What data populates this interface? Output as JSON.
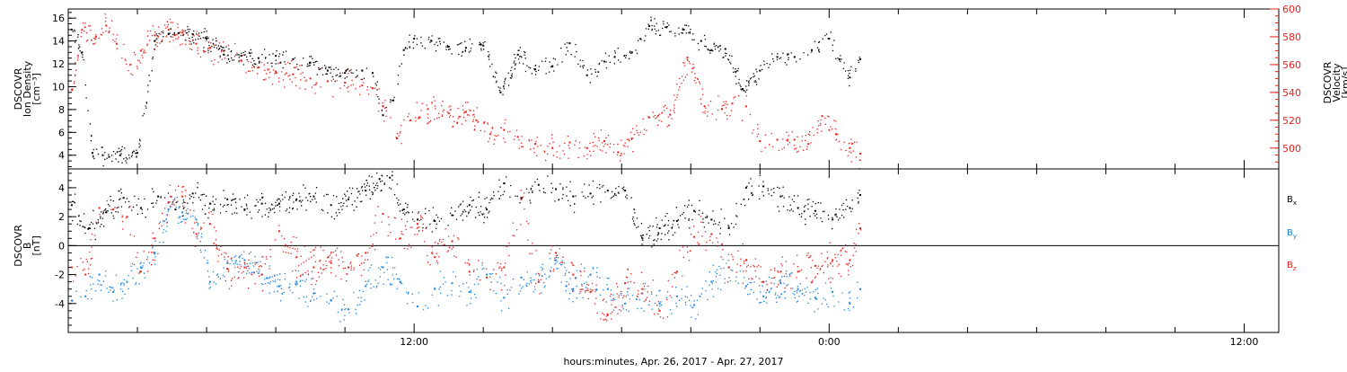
{
  "colors": {
    "black": "#000000",
    "red": "#e8201a",
    "blue": "#1a82e0",
    "frame": "#000000"
  },
  "xaxis": {
    "label": "hours:minutes, Apr. 26, 2017 - Apr. 27, 2017",
    "range_hours": [
      0,
      35
    ],
    "tick_labels": [
      {
        "hour": 10,
        "text": "12:00"
      },
      {
        "hour": 22,
        "text": "0:00"
      },
      {
        "hour": 34,
        "text": "12:00"
      }
    ]
  },
  "chart_data": [
    {
      "type": "scatter",
      "panel": "density-velocity",
      "ylabel": [
        "DSCOVR",
        "Ion Density",
        "[cm⁻³]"
      ],
      "ylim": [
        2.8,
        16.8
      ],
      "y_ticks": [
        4,
        6,
        8,
        10,
        12,
        14,
        16
      ],
      "y2label": [
        "DSCOVR",
        "Velocity",
        "[km/s]"
      ],
      "y2lim": [
        485,
        600
      ],
      "y2_ticks": [
        500,
        520,
        540,
        560,
        580,
        600
      ],
      "series": [
        {
          "name": "",
          "axis": "left",
          "color": "black",
          "x": [
            0.1,
            0.4,
            0.7,
            1.0,
            1.5,
            2.0,
            2.5,
            2.9,
            3.2,
            3.6,
            4.0,
            4.5,
            5.0,
            5.5,
            6.0,
            6.5,
            7.0,
            7.5,
            8.0,
            8.5,
            8.8,
            9.1,
            9.4,
            9.7,
            10.0,
            10.5,
            11.0,
            11.5,
            12.0,
            12.5,
            13.0,
            13.5,
            14.0,
            14.5,
            15.0,
            15.5,
            15.8,
            16.3,
            16.8,
            17.3,
            17.8,
            18.3,
            18.6,
            19.0,
            19.5,
            20.0,
            20.5,
            21.0,
            21.5,
            22.0,
            22.3,
            22.6,
            22.9
          ],
          "y": [
            15.0,
            13.0,
            4.2,
            4.0,
            4.0,
            4.2,
            14.0,
            14.6,
            14.7,
            14.6,
            14.2,
            12.8,
            12.7,
            12.5,
            12.7,
            12.4,
            12.1,
            11.4,
            11.2,
            11.4,
            11.2,
            7.5,
            8.8,
            13.2,
            14.2,
            14.0,
            13.5,
            13.4,
            13.6,
            9.5,
            12.8,
            11.5,
            11.8,
            13.8,
            11.0,
            12.2,
            12.6,
            13.0,
            15.3,
            15.2,
            15.0,
            14.0,
            13.2,
            13.3,
            9.8,
            11.4,
            12.6,
            12.6,
            13.2,
            14.2,
            12.4,
            10.8,
            12.4
          ]
        },
        {
          "name": "",
          "axis": "right",
          "color": "red",
          "x": [
            0.1,
            0.4,
            0.8,
            1.1,
            1.4,
            1.8,
            2.1,
            2.5,
            2.9,
            3.3,
            3.7,
            4.1,
            4.5,
            5.0,
            5.5,
            6.0,
            6.5,
            7.0,
            7.5,
            8.0,
            8.5,
            8.8,
            9.1,
            9.5,
            9.9,
            10.4,
            11.0,
            11.5,
            11.8,
            12.2,
            12.6,
            13.0,
            13.5,
            14.0,
            14.5,
            15.0,
            15.5,
            15.9,
            16.3,
            16.8,
            17.4,
            17.9,
            18.4,
            18.9,
            19.2,
            19.6,
            20.0,
            20.5,
            21.0,
            21.4,
            21.8,
            22.2,
            22.6,
            22.9
          ],
          "y": [
            542,
            585,
            580,
            588,
            575,
            560,
            570,
            581,
            585,
            583,
            575,
            572,
            570,
            563,
            558,
            555,
            553,
            550,
            548,
            547,
            545,
            543,
            530,
            507,
            520,
            528,
            525,
            526,
            520,
            510,
            513,
            508,
            503,
            500,
            504,
            500,
            505,
            497,
            507,
            522,
            524,
            565,
            530,
            528,
            532,
            530,
            505,
            506,
            506,
            503,
            523,
            510,
            500,
            496
          ]
        }
      ]
    },
    {
      "type": "scatter",
      "panel": "magnetic-field",
      "ylabel": [
        "DSCOVR",
        "B",
        "[nT]"
      ],
      "ylim": [
        -6.0,
        5.3
      ],
      "y_ticks": [
        -4,
        -2,
        0,
        2,
        4
      ],
      "zero_line": true,
      "series": [
        {
          "name": "Bx",
          "color": "black",
          "x": [
            0.1,
            0.6,
            1.1,
            1.6,
            2.1,
            2.6,
            3.1,
            3.6,
            4.1,
            4.6,
            5.1,
            5.6,
            6.1,
            6.6,
            7.1,
            7.6,
            8.1,
            8.6,
            9.0,
            9.3,
            9.7,
            10.1,
            10.6,
            11.1,
            11.6,
            12.1,
            12.6,
            13.1,
            13.6,
            14.1,
            14.6,
            15.1,
            15.6,
            16.1,
            16.6,
            17.1,
            17.6,
            18.1,
            18.6,
            19.1,
            19.6,
            20.1,
            20.6,
            21.1,
            21.6,
            22.1,
            22.6,
            22.9
          ],
          "y": [
            2.8,
            1.2,
            2.3,
            3.3,
            2.6,
            3.4,
            2.5,
            3.6,
            2.9,
            3.2,
            2.5,
            2.9,
            2.9,
            3.2,
            3.4,
            2.8,
            3.2,
            3.8,
            4.6,
            4.7,
            2.5,
            1.8,
            1.7,
            2.1,
            2.8,
            2.5,
            4.3,
            3.3,
            4.2,
            3.9,
            3.4,
            3.6,
            3.8,
            3.8,
            0.5,
            1.2,
            1.7,
            2.4,
            1.8,
            1.2,
            4.0,
            4.1,
            3.4,
            2.6,
            2.4,
            1.8,
            2.6,
            3.5
          ]
        },
        {
          "name": "By",
          "color": "blue",
          "x": [
            0.1,
            0.5,
            0.9,
            1.3,
            1.7,
            2.1,
            2.5,
            2.9,
            3.3,
            3.7,
            4.1,
            4.6,
            5.1,
            5.6,
            6.1,
            6.6,
            7.1,
            7.6,
            8.1,
            8.6,
            9.1,
            9.6,
            10.1,
            10.6,
            11.1,
            11.6,
            12.1,
            12.6,
            13.1,
            13.6,
            14.1,
            14.6,
            15.1,
            15.6,
            16.1,
            16.6,
            17.1,
            17.6,
            18.1,
            18.6,
            19.1,
            19.6,
            20.1,
            20.6,
            21.1,
            21.6,
            22.1,
            22.6,
            22.9
          ],
          "y": [
            -3.8,
            -3.5,
            -2.0,
            -3.2,
            -2.5,
            -1.5,
            -0.5,
            2.5,
            2.3,
            1.8,
            -2.5,
            -1.2,
            -1.0,
            -2.0,
            -2.8,
            -2.5,
            -3.3,
            -3.8,
            -4.4,
            -2.8,
            -1.5,
            -2.5,
            -4.2,
            -3.0,
            -2.6,
            -3.2,
            -2.0,
            -3.6,
            -2.2,
            -2.5,
            -1.0,
            -3.0,
            -2.0,
            -3.0,
            -4.0,
            -3.3,
            -4.0,
            -3.5,
            -4.1,
            -2.5,
            -1.5,
            -2.8,
            -3.5,
            -2.6,
            -3.0,
            -3.6,
            -3.2,
            -4.0,
            -3.0
          ]
        },
        {
          "name": "Bz",
          "color": "red",
          "x": [
            0.1,
            0.5,
            0.9,
            1.3,
            1.7,
            2.1,
            2.5,
            2.9,
            3.3,
            3.7,
            4.1,
            4.6,
            5.1,
            5.6,
            6.1,
            6.6,
            7.1,
            7.6,
            8.1,
            8.6,
            9.1,
            9.6,
            10.1,
            10.6,
            11.1,
            11.6,
            12.1,
            12.6,
            13.1,
            13.6,
            14.1,
            14.6,
            15.1,
            15.6,
            16.1,
            16.6,
            17.1,
            17.6,
            18.1,
            18.6,
            19.1,
            19.6,
            20.1,
            20.6,
            21.1,
            21.6,
            22.1,
            22.6,
            22.9
          ],
          "y": [
            -1.5,
            -2.0,
            2.6,
            2.5,
            2.0,
            -1.8,
            0.5,
            3.0,
            3.4,
            0.8,
            1.5,
            -1.6,
            -1.5,
            -2.0,
            1.0,
            -0.8,
            -1.5,
            -1.2,
            -1.5,
            -0.5,
            2.2,
            0.5,
            1.5,
            -0.8,
            0.3,
            -1.8,
            -2.2,
            -1.5,
            3.2,
            -2.5,
            -0.5,
            -2.0,
            -3.2,
            -4.8,
            -2.6,
            -3.0,
            -4.5,
            -1.8,
            0.6,
            0.8,
            -1.5,
            -1.0,
            -2.5,
            -1.8,
            -1.8,
            -1.4,
            -1.0,
            -1.0,
            1.2
          ]
        }
      ]
    }
  ]
}
